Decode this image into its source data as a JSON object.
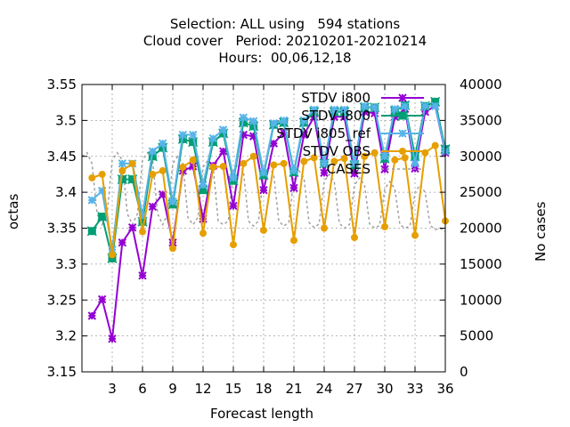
{
  "chart_data": {
    "type": "line",
    "title_lines": [
      "Selection: ALL using   594 stations",
      "Cloud cover   Period: 20210201-20210214",
      "Hours:  00,06,12,18"
    ],
    "xlabel": "Forecast length",
    "ylabel": "octas",
    "y2label": "No cases",
    "xlim": [
      0,
      36
    ],
    "ylim": [
      3.15,
      3.55
    ],
    "y2lim": [
      0,
      40000
    ],
    "x_ticks": [
      3,
      6,
      9,
      12,
      15,
      18,
      21,
      24,
      27,
      30,
      33,
      36
    ],
    "y_ticks": [
      3.15,
      3.2,
      3.25,
      3.3,
      3.35,
      3.4,
      3.45,
      3.5,
      3.55
    ],
    "y_tick_labels": [
      "3.15",
      "3.2",
      "3.25",
      "3.3",
      "3.35",
      "3.4",
      "3.45",
      "3.5",
      "3.55"
    ],
    "y2_ticks": [
      0,
      5000,
      10000,
      15000,
      20000,
      25000,
      30000,
      35000,
      40000
    ],
    "grid": true,
    "legend_position": "top-right",
    "series": [
      {
        "name": "STDV i800",
        "color": "#9400d3",
        "marker": "star",
        "axis": "y",
        "x": [
          1,
          2,
          3,
          4,
          5,
          6,
          7,
          8,
          9,
          10,
          11,
          12,
          13,
          14,
          15,
          16,
          17,
          18,
          19,
          20,
          21,
          22,
          23,
          24,
          25,
          26,
          27,
          28,
          29,
          30,
          31,
          32,
          33,
          34,
          35,
          36
        ],
        "values": [
          3.228,
          3.251,
          3.196,
          3.33,
          3.351,
          3.284,
          3.38,
          3.397,
          3.33,
          3.43,
          3.436,
          3.363,
          3.437,
          3.457,
          3.381,
          3.48,
          3.478,
          3.403,
          3.468,
          3.483,
          3.406,
          3.48,
          3.505,
          3.427,
          3.505,
          3.505,
          3.426,
          3.512,
          3.51,
          3.432,
          3.505,
          3.516,
          3.433,
          3.512,
          3.52,
          3.455
        ]
      },
      {
        "name": "STDV i800",
        "color": "#009e73",
        "marker": "box",
        "axis": "y",
        "x": [
          1,
          2,
          3,
          4,
          5,
          6,
          7,
          8,
          9,
          10,
          11,
          12,
          13,
          14,
          15,
          16,
          17,
          18,
          19,
          20,
          21,
          22,
          23,
          24,
          25,
          26,
          27,
          28,
          29,
          30,
          31,
          32,
          33,
          34,
          35,
          36
        ],
        "values": [
          3.346,
          3.366,
          3.308,
          3.418,
          3.418,
          3.359,
          3.45,
          3.462,
          3.383,
          3.474,
          3.47,
          3.403,
          3.47,
          3.482,
          3.416,
          3.497,
          3.492,
          3.424,
          3.494,
          3.497,
          3.428,
          3.497,
          3.512,
          3.44,
          3.512,
          3.512,
          3.438,
          3.518,
          3.518,
          3.447,
          3.513,
          3.521,
          3.45,
          3.52,
          3.526,
          3.46
        ]
      },
      {
        "name": "STDV i805_ref",
        "color": "#56b4e9",
        "marker": "star",
        "axis": "y",
        "x": [
          1,
          2,
          3,
          4,
          5,
          6,
          7,
          8,
          9,
          10,
          11,
          12,
          13,
          14,
          15,
          16,
          17,
          18,
          19,
          20,
          21,
          22,
          23,
          24,
          25,
          26,
          27,
          28,
          29,
          30,
          31,
          32,
          33,
          34,
          35,
          36
        ],
        "values": [
          3.389,
          3.402,
          3.32,
          3.44,
          3.44,
          3.368,
          3.457,
          3.468,
          3.387,
          3.48,
          3.48,
          3.41,
          3.475,
          3.487,
          3.42,
          3.504,
          3.499,
          3.427,
          3.496,
          3.5,
          3.43,
          3.5,
          3.515,
          3.44,
          3.515,
          3.515,
          3.44,
          3.52,
          3.518,
          3.45,
          3.516,
          3.52,
          3.44,
          3.52,
          3.52,
          3.457
        ]
      },
      {
        "name": "STDV OBS",
        "color": "#e69f00",
        "marker": "circle",
        "axis": "y",
        "x": [
          1,
          2,
          3,
          4,
          5,
          6,
          7,
          8,
          9,
          10,
          11,
          12,
          13,
          14,
          15,
          16,
          17,
          18,
          19,
          20,
          21,
          22,
          23,
          24,
          25,
          26,
          27,
          28,
          29,
          30,
          31,
          32,
          33,
          34,
          35,
          36
        ],
        "values": [
          3.42,
          3.425,
          3.313,
          3.43,
          3.44,
          3.345,
          3.425,
          3.43,
          3.322,
          3.435,
          3.445,
          3.343,
          3.435,
          3.436,
          3.327,
          3.44,
          3.45,
          3.347,
          3.438,
          3.44,
          3.333,
          3.443,
          3.448,
          3.35,
          3.443,
          3.447,
          3.337,
          3.45,
          3.455,
          3.352,
          3.445,
          3.448,
          3.34,
          3.455,
          3.465,
          3.36
        ]
      },
      {
        "name": "CASES",
        "color": "#a0a0a0",
        "marker": "none",
        "dash": true,
        "axis": "y2",
        "x": [
          0,
          0.5,
          1,
          1.5,
          2,
          2.5,
          3,
          3.5,
          4,
          4.5,
          5,
          5.5,
          6,
          6.5,
          7,
          7.5,
          8,
          8.5,
          9,
          9.5,
          10,
          10.5,
          11,
          11.5,
          12,
          12.5,
          13,
          13.5,
          14,
          14.5,
          15,
          15.5,
          16,
          16.5,
          17,
          17.5,
          18,
          18.5,
          19,
          19.5,
          20,
          20.5,
          21,
          21.5,
          22,
          22.5,
          23,
          23.5,
          24,
          24.5,
          25,
          25.5,
          26,
          26.5,
          27,
          27.5,
          28,
          28.5,
          29,
          29.5,
          30,
          30.5,
          31,
          31.5,
          32,
          32.5,
          33,
          33.5,
          34,
          34.5,
          35,
          35.5,
          36
        ],
        "values": [
          30000,
          30500,
          29000,
          22000,
          20500,
          22000,
          29500,
          30500,
          29500,
          22000,
          20500,
          22000,
          29500,
          30500,
          29500,
          22000,
          20500,
          22000,
          29000,
          30000,
          29000,
          21500,
          20500,
          21500,
          28500,
          29500,
          28500,
          21000,
          20500,
          21000,
          28000,
          29000,
          28000,
          21000,
          20300,
          21000,
          27500,
          28500,
          27500,
          21000,
          20300,
          20800,
          27000,
          28000,
          27000,
          20800,
          20100,
          20600,
          26500,
          27500,
          26500,
          20700,
          20000,
          20500,
          26000,
          27000,
          26000,
          20600,
          20000,
          20400,
          25500,
          26500,
          25500,
          20500,
          20000,
          20300,
          25000,
          26000,
          25000,
          20400,
          19800,
          20000,
          19500
        ]
      }
    ]
  }
}
